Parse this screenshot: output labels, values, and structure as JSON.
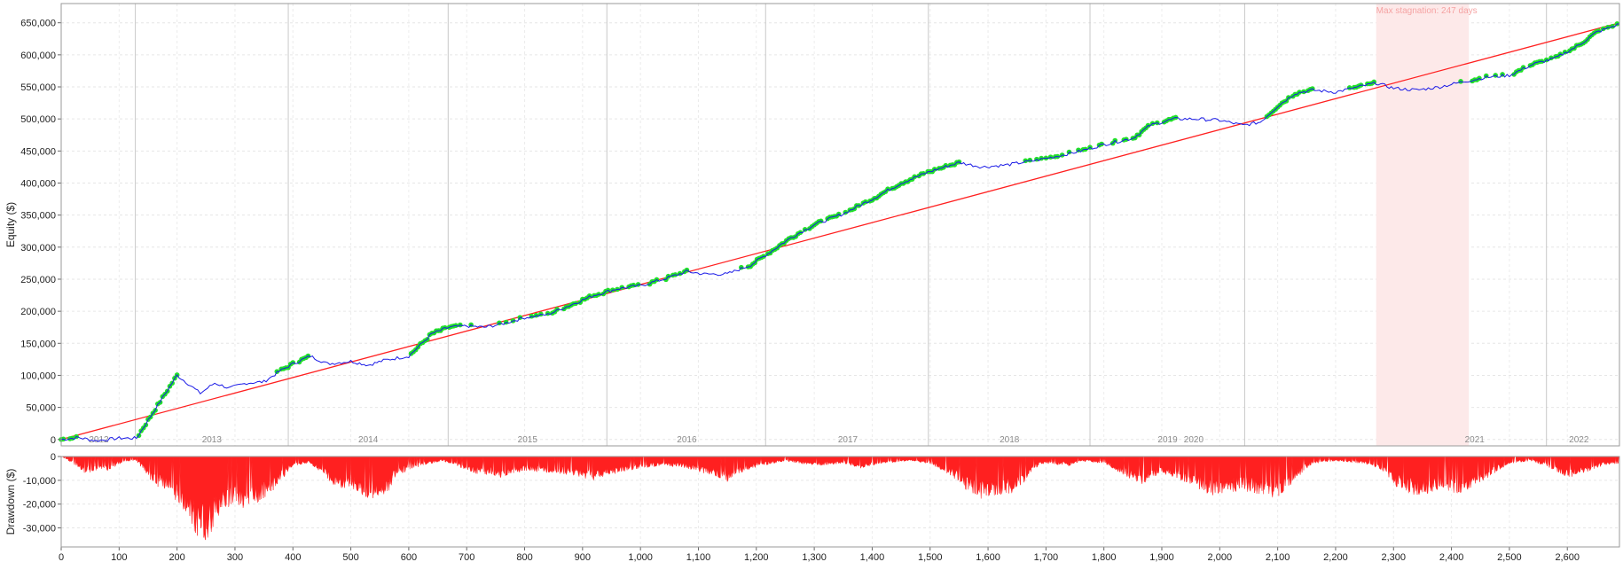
{
  "chart_data": [
    {
      "type": "line",
      "ylabel": "Equity ($)",
      "xlim": [
        0,
        2690
      ],
      "ylim": [
        -10000,
        680000
      ],
      "y_ticks": [
        "0",
        "50,000",
        "100,000",
        "150,000",
        "200,000",
        "250,000",
        "300,000",
        "350,000",
        "400,000",
        "450,000",
        "500,000",
        "550,000",
        "600,000",
        "650,000"
      ],
      "y_tick_values": [
        0,
        50000,
        100000,
        150000,
        200000,
        250000,
        300000,
        350000,
        400000,
        450000,
        500000,
        550000,
        600000,
        650000
      ],
      "grid": true,
      "year_labels": [
        {
          "label": "2012",
          "x": 65
        },
        {
          "label": "2013",
          "x": 260
        },
        {
          "label": "2014",
          "x": 530
        },
        {
          "label": "2015",
          "x": 805
        },
        {
          "label": "2016",
          "x": 1080
        },
        {
          "label": "2017",
          "x": 1358
        },
        {
          "label": "2018",
          "x": 1637
        },
        {
          "label": "2019",
          "x": 1910
        },
        {
          "label": "2020",
          "x": 1955
        },
        {
          "label": "2021",
          "x": 2440
        },
        {
          "label": "2022",
          "x": 2620
        }
      ],
      "year_boundaries": [
        128,
        392,
        668,
        942,
        1216,
        1497,
        1776,
        2043,
        2564
      ],
      "stagnation": {
        "label": "Max stagnation: 247 days",
        "x_start": 2270,
        "x_end": 2430
      },
      "series": [
        {
          "name": "",
          "color": "#1a1ae6",
          "x": [
            0,
            30,
            60,
            100,
            130,
            150,
            175,
            200,
            215,
            240,
            265,
            290,
            320,
            350,
            380,
            400,
            430,
            460,
            500,
            530,
            560,
            600,
            640,
            670,
            700,
            730,
            760,
            800,
            840,
            880,
            920,
            960,
            1000,
            1040,
            1080,
            1110,
            1150,
            1190,
            1220,
            1260,
            1300,
            1350,
            1400,
            1450,
            1500,
            1550,
            1590,
            1630,
            1680,
            1720,
            1760,
            1800,
            1850,
            1880,
            1920,
            1960,
            2000,
            2040,
            2070,
            2100,
            2130,
            2160,
            2200,
            2240,
            2270,
            2300,
            2340,
            2380,
            2420,
            2460,
            2500,
            2540,
            2580,
            2620,
            2650,
            2690
          ],
          "y": [
            0,
            3000,
            -2000,
            2000,
            2000,
            30000,
            65000,
            100000,
            90000,
            72000,
            88000,
            80000,
            88000,
            90000,
            108000,
            118000,
            130000,
            118000,
            122000,
            116000,
            124000,
            130000,
            165000,
            175000,
            177000,
            175000,
            180000,
            190000,
            195000,
            210000,
            225000,
            235000,
            240000,
            250000,
            262000,
            258000,
            258000,
            272000,
            290000,
            315000,
            335000,
            352000,
            375000,
            400000,
            418000,
            432000,
            425000,
            428000,
            435000,
            442000,
            450000,
            460000,
            470000,
            490000,
            500000,
            500000,
            498000,
            490000,
            495000,
            520000,
            540000,
            545000,
            542000,
            550000,
            556000,
            548000,
            545000,
            550000,
            558000,
            565000,
            568000,
            585000,
            595000,
            615000,
            635000,
            648000
          ]
        },
        {
          "name": "",
          "color": "#ff2020",
          "x": [
            0,
            2690
          ],
          "y": [
            0,
            650000
          ]
        }
      ]
    },
    {
      "type": "area",
      "ylabel": "Drawdown ($)",
      "xlabel": "",
      "xlim": [
        0,
        2690
      ],
      "ylim": [
        -38000,
        0
      ],
      "y_ticks": [
        "0",
        "-10,000",
        "-20,000",
        "-30,000"
      ],
      "y_tick_values": [
        0,
        -10000,
        -20000,
        -30000
      ],
      "x_ticks": [
        "0",
        "100",
        "200",
        "300",
        "400",
        "500",
        "600",
        "700",
        "800",
        "900",
        "1,000",
        "1,100",
        "1,200",
        "1,300",
        "1,400",
        "1,500",
        "1,600",
        "1,700",
        "1,800",
        "1,900",
        "2,000",
        "2,100",
        "2,200",
        "2,300",
        "2,400",
        "2,500",
        "2,600"
      ],
      "x_tick_values": [
        0,
        100,
        200,
        300,
        400,
        500,
        600,
        700,
        800,
        900,
        1000,
        1100,
        1200,
        1300,
        1400,
        1500,
        1600,
        1700,
        1800,
        1900,
        2000,
        2100,
        2200,
        2300,
        2400,
        2500,
        2600
      ],
      "grid": true,
      "series": [
        {
          "name": "",
          "color": "#ff2020",
          "x": [
            0,
            20,
            40,
            80,
            110,
            130,
            160,
            190,
            215,
            230,
            245,
            260,
            275,
            300,
            320,
            350,
            370,
            380,
            400,
            430,
            460,
            480,
            510,
            535,
            560,
            580,
            610,
            640,
            660,
            680,
            710,
            740,
            760,
            800,
            840,
            880,
            920,
            960,
            1000,
            1040,
            1080,
            1120,
            1150,
            1180,
            1210,
            1250,
            1300,
            1350,
            1380,
            1420,
            1460,
            1500,
            1540,
            1570,
            1590,
            1620,
            1650,
            1680,
            1700,
            1740,
            1760,
            1800,
            1850,
            1870,
            1900,
            1950,
            1990,
            2040,
            2070,
            2100,
            2130,
            2160,
            2200,
            2250,
            2280,
            2300,
            2320,
            2350,
            2380,
            2410,
            2440,
            2470,
            2500,
            2540,
            2570,
            2600,
            2630,
            2660,
            2690
          ],
          "y": [
            0,
            -3000,
            -7000,
            -6000,
            -2000,
            -2000,
            -12000,
            -16000,
            -24000,
            -32000,
            -36000,
            -33000,
            -24000,
            -20000,
            -23000,
            -18000,
            -14000,
            -10000,
            -4000,
            -3000,
            -10000,
            -14000,
            -16000,
            -18000,
            -17000,
            -8000,
            -5000,
            -3000,
            -2000,
            -4000,
            -7000,
            -8000,
            -9000,
            -6000,
            -7000,
            -8000,
            -10000,
            -7000,
            -5000,
            -4000,
            -5000,
            -8000,
            -11000,
            -6000,
            -4000,
            -2000,
            -4000,
            -3000,
            -5000,
            -3000,
            -2000,
            -3000,
            -9000,
            -16000,
            -18000,
            -17000,
            -15000,
            -5000,
            -3000,
            -4000,
            -2000,
            -3000,
            -10000,
            -12000,
            -7000,
            -12000,
            -17000,
            -14000,
            -17000,
            -18000,
            -10000,
            -3000,
            -2000,
            -3000,
            -6000,
            -12000,
            -15000,
            -17000,
            -14000,
            -16000,
            -13000,
            -8000,
            -3000,
            -2000,
            -5000,
            -9000,
            -7000,
            -4000,
            -3000
          ]
        }
      ]
    }
  ]
}
